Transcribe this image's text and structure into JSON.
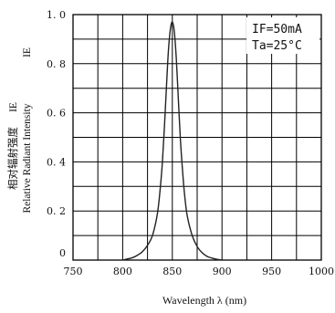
{
  "chart_data": {
    "type": "line",
    "xlabel": "Wavelength λ (nm)",
    "ylabel": "Relative Radiant Intensity",
    "ylabel_cn": "相对辐射强度",
    "ylabel_symbol": "IE",
    "ylabel_symbol_right": "IE",
    "xlim": [
      750,
      1000
    ],
    "ylim": [
      0,
      1.0
    ],
    "x_ticks": [
      750,
      800,
      850,
      900,
      950,
      1000
    ],
    "x_tick_labels": [
      "750",
      "800",
      "850",
      "900",
      "950",
      "1000"
    ],
    "y_ticks": [
      0,
      0.2,
      0.4,
      0.6,
      0.8,
      1.0
    ],
    "y_tick_labels": [
      "0",
      "0. 2",
      "0. 4",
      "0. 6",
      "0. 8",
      "1. 0"
    ],
    "grid": true,
    "annotations": [
      "IF=50mA",
      "Ta=25°C"
    ],
    "series": [
      {
        "color": "#222222",
        "x": [
          800,
          805,
          810,
          815,
          820,
          825,
          830,
          835,
          838,
          840,
          842,
          844,
          846,
          848,
          850,
          852,
          854,
          856,
          858,
          860,
          862,
          865,
          870,
          875,
          880,
          885,
          890,
          895,
          900
        ],
        "y": [
          0.0,
          0.005,
          0.01,
          0.02,
          0.035,
          0.06,
          0.1,
          0.19,
          0.3,
          0.4,
          0.54,
          0.7,
          0.85,
          0.94,
          0.97,
          0.93,
          0.82,
          0.66,
          0.5,
          0.38,
          0.28,
          0.18,
          0.1,
          0.055,
          0.03,
          0.015,
          0.008,
          0.003,
          0.0
        ]
      }
    ]
  }
}
